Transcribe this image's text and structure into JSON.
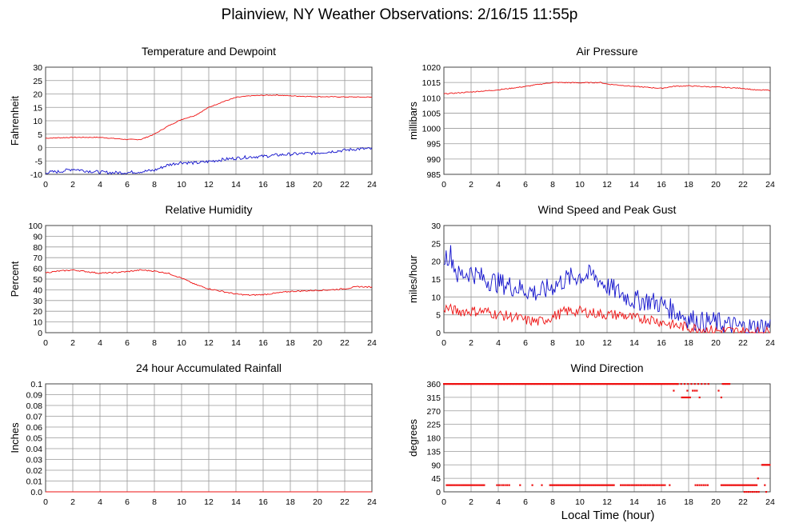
{
  "title": "Plainview, NY Weather Observations: 2/16/15 11:55p",
  "xlabel": "Local Time (hour)",
  "colors": {
    "red": "#ee1111",
    "blue": "#1111cc",
    "grid": "#999999",
    "frame": "#444444"
  },
  "x_ticks": [
    "0",
    "2",
    "4",
    "6",
    "8",
    "10",
    "12",
    "14",
    "16",
    "18",
    "20",
    "22",
    "24"
  ],
  "chart_data": [
    {
      "id": "temp",
      "type": "line",
      "title": "Temperature and Dewpoint",
      "xlabel": "",
      "ylabel": "Fahrenheit",
      "xlim": [
        0,
        24
      ],
      "ylim": [
        -10,
        30
      ],
      "yticks": [
        "-10",
        "-5",
        "0",
        "5",
        "10",
        "15",
        "20",
        "25",
        "30"
      ],
      "noise": 0.15,
      "series": [
        {
          "color": "#ee1111",
          "noise": 0.15,
          "x": [
            0,
            2,
            4,
            6,
            7,
            8,
            9,
            10,
            11,
            12,
            13,
            14,
            15,
            16,
            17,
            18,
            20,
            22,
            24
          ],
          "y": [
            3.5,
            3.8,
            3.8,
            3,
            3,
            5,
            8,
            10.5,
            12,
            15,
            17,
            18.7,
            19.3,
            19.5,
            19.6,
            19.3,
            19,
            18.9,
            18.8
          ]
        },
        {
          "color": "#1111cc",
          "noise": 0.6,
          "x": [
            0,
            1,
            2,
            3,
            4,
            5,
            6,
            7,
            8,
            9,
            10,
            11,
            12,
            13,
            14,
            15,
            16,
            17,
            18,
            20,
            22,
            23,
            24
          ],
          "y": [
            -9.3,
            -9,
            -8,
            -8.7,
            -9.2,
            -9.4,
            -9.3,
            -9,
            -8.5,
            -6.5,
            -5.5,
            -5.8,
            -5.2,
            -4.5,
            -4,
            -3.5,
            -3.3,
            -2.8,
            -2.5,
            -2,
            -1,
            -0.5,
            -0.5
          ]
        }
      ]
    },
    {
      "id": "pressure",
      "type": "line",
      "title": "Air Pressure",
      "xlabel": "",
      "ylabel": "millibars",
      "xlim": [
        0,
        24
      ],
      "ylim": [
        985,
        1020
      ],
      "yticks": [
        "985",
        "990",
        "995",
        "1000",
        "1005",
        "1010",
        "1015",
        "1020"
      ],
      "series": [
        {
          "color": "#ee1111",
          "noise": 0.15,
          "x": [
            0,
            2,
            4,
            6,
            7,
            8,
            10,
            11.5,
            12,
            14,
            16,
            17,
            18,
            20,
            22,
            23,
            24
          ],
          "y": [
            1011.3,
            1011.9,
            1012.6,
            1013.7,
            1014.4,
            1015,
            1014.9,
            1015,
            1014.5,
            1013.7,
            1013.1,
            1013.8,
            1013.9,
            1013.5,
            1013.1,
            1012.5,
            1012.5
          ]
        }
      ]
    },
    {
      "id": "humidity",
      "type": "line",
      "title": "Relative Humidity",
      "xlabel": "",
      "ylabel": "Percent",
      "xlim": [
        0,
        24
      ],
      "ylim": [
        0,
        100
      ],
      "yticks": [
        "0",
        "10",
        "20",
        "30",
        "40",
        "50",
        "60",
        "70",
        "80",
        "90",
        "100"
      ],
      "series": [
        {
          "color": "#ee1111",
          "noise": 0.6,
          "x": [
            0,
            1,
            2,
            3,
            4,
            5,
            6,
            7,
            8,
            9,
            10,
            11,
            12,
            13,
            14,
            15,
            16,
            17,
            18,
            19,
            20,
            21,
            22,
            23,
            24
          ],
          "y": [
            56,
            57.5,
            58.5,
            57,
            55.5,
            56,
            57,
            58.5,
            57.5,
            55.5,
            51,
            45,
            41,
            38.5,
            36,
            35,
            35.5,
            37,
            38.5,
            39,
            39.5,
            40,
            41,
            43,
            42.5
          ]
        }
      ]
    },
    {
      "id": "wind",
      "type": "line",
      "title": "Wind Speed and Peak Gust",
      "xlabel": "",
      "ylabel": "miles/hour",
      "xlim": [
        0,
        24
      ],
      "ylim": [
        0,
        30
      ],
      "yticks": [
        "0",
        "5",
        "10",
        "15",
        "20",
        "25",
        "30"
      ],
      "series": [
        {
          "color": "#1111cc",
          "noise": 3,
          "x": [
            0,
            0.5,
            1,
            2,
            3,
            4,
            5,
            6,
            7,
            8,
            9,
            10,
            11,
            12,
            13,
            14,
            15,
            16,
            17,
            18,
            19,
            20,
            21,
            22,
            23,
            24
          ],
          "y": [
            21,
            22,
            16,
            17,
            15,
            14,
            13,
            12,
            11,
            13,
            15,
            16,
            16,
            13,
            11,
            9,
            9,
            8,
            6,
            4,
            3,
            3,
            2,
            1.5,
            1.5,
            2
          ]
        },
        {
          "color": "#ee1111",
          "noise": 1.5,
          "x": [
            0,
            1,
            2,
            3,
            4,
            5,
            6,
            7,
            8,
            9,
            10,
            11,
            12,
            13,
            14,
            15,
            16,
            17,
            18,
            19,
            20,
            21,
            22,
            23,
            24
          ],
          "y": [
            7,
            6,
            6,
            6,
            5,
            4.5,
            3.5,
            3,
            4.5,
            6,
            6,
            5.5,
            5,
            5,
            4,
            4,
            3,
            2,
            1.5,
            1,
            0.5,
            0.5,
            0.3,
            0.2,
            0.2
          ]
        }
      ]
    },
    {
      "id": "rain",
      "type": "line",
      "title": "24 hour Accumulated Rainfall",
      "xlabel": "",
      "ylabel": "Inches",
      "xlim": [
        0,
        24
      ],
      "ylim": [
        0,
        0.1
      ],
      "yticks": [
        "0.0",
        "0.01",
        "0.02",
        "0.03",
        "0.04",
        "0.05",
        "0.06",
        "0.07",
        "0.08",
        "0.09",
        "0.1"
      ],
      "series": [
        {
          "color": "#ee1111",
          "noise": 0,
          "x": [
            0,
            24
          ],
          "y": [
            0,
            0
          ]
        }
      ]
    },
    {
      "id": "direction",
      "type": "scatter",
      "title": "Wind Direction",
      "xlabel": "Local Time (hour)",
      "ylabel": "degrees",
      "xlim": [
        0,
        24
      ],
      "ylim": [
        0,
        360
      ],
      "yticks": [
        "0",
        "45",
        "90",
        "135",
        "180",
        "225",
        "270",
        "315",
        "360"
      ],
      "series": [
        {
          "color": "#ee1111",
          "segments": [
            {
              "x0": 0,
              "x1": 17.2,
              "y": 360,
              "step": 0.08
            },
            {
              "x0": 17.2,
              "x1": 19.5,
              "y": 360,
              "step": 0.25
            },
            {
              "x0": 20.5,
              "x1": 21,
              "y": 360,
              "step": 0.1
            },
            {
              "x0": 0.2,
              "x1": 3,
              "y": 22.5,
              "step": 0.12
            },
            {
              "x0": 3.9,
              "x1": 4.8,
              "y": 22.5,
              "step": 0.15
            },
            {
              "x0": 7.8,
              "x1": 12.5,
              "y": 22.5,
              "step": 0.1
            },
            {
              "x0": 13,
              "x1": 16.3,
              "y": 22.5,
              "step": 0.13
            },
            {
              "x0": 18.5,
              "x1": 19.5,
              "y": 22.5,
              "step": 0.15
            },
            {
              "x0": 20.4,
              "x1": 23,
              "y": 22.5,
              "step": 0.1
            },
            {
              "x0": 22.1,
              "x1": 23.2,
              "y": 0,
              "step": 0.15
            },
            {
              "x0": 23.4,
              "x1": 24,
              "y": 90,
              "step": 0.07
            },
            {
              "x0": 17.5,
              "x1": 18.1,
              "y": 315,
              "step": 0.12
            },
            {
              "x0": 18.3,
              "x1": 18.6,
              "y": 337.5,
              "step": 0.15
            }
          ],
          "points": [
            [
              5.6,
              22.5
            ],
            [
              6.5,
              22.5
            ],
            [
              7.2,
              22.5
            ],
            [
              16.6,
              22.5
            ],
            [
              16.9,
              337.5
            ],
            [
              17.9,
              337.5
            ],
            [
              18.8,
              315
            ],
            [
              20.2,
              337.5
            ],
            [
              20.4,
              315
            ],
            [
              23.1,
              45
            ],
            [
              23.6,
              22.5
            ],
            [
              23.7,
              0
            ]
          ]
        }
      ]
    }
  ]
}
